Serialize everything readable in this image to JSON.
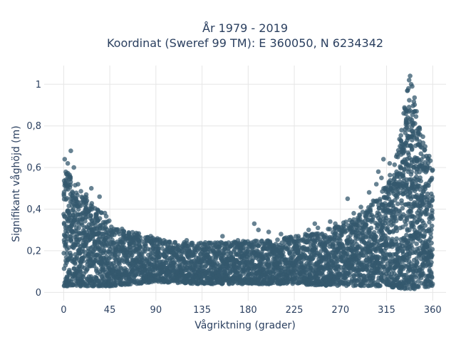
{
  "chart_data": {
    "type": "scatter",
    "title_line1": "År 1979 - 2019",
    "title_line2": "Koordinat (Sweref 99 TM): E 360050, N 6234342",
    "xlabel": "Vågriktning (grader)",
    "ylabel": "Signifikant våghöjd (m)",
    "xlim": [
      -19,
      373
    ],
    "ylim": [
      -0.04,
      1.09
    ],
    "x_ticks": [
      0,
      45,
      90,
      135,
      180,
      225,
      270,
      315,
      360
    ],
    "x_tick_labels": [
      "0",
      "45",
      "90",
      "135",
      "180",
      "225",
      "270",
      "315",
      "360"
    ],
    "y_ticks": [
      0,
      0.2,
      0.4,
      0.6,
      0.8,
      1
    ],
    "y_tick_labels": [
      "0",
      "0,2",
      "0,4",
      "0,6",
      "0,8",
      "1"
    ],
    "grid": true,
    "marker_color": "#34586e",
    "marker_opacity": 0.75,
    "series": [
      {
        "upper_envelope": [
          [
            0,
            0.6
          ],
          [
            5,
            0.57
          ],
          [
            10,
            0.55
          ],
          [
            15,
            0.5
          ],
          [
            20,
            0.47
          ],
          [
            25,
            0.45
          ],
          [
            30,
            0.42
          ],
          [
            40,
            0.38
          ],
          [
            45,
            0.36
          ],
          [
            50,
            0.32
          ],
          [
            60,
            0.3
          ],
          [
            70,
            0.29
          ],
          [
            80,
            0.27
          ],
          [
            90,
            0.26
          ],
          [
            100,
            0.25
          ],
          [
            120,
            0.24
          ],
          [
            135,
            0.24
          ],
          [
            150,
            0.24
          ],
          [
            180,
            0.25
          ],
          [
            200,
            0.25
          ],
          [
            225,
            0.27
          ],
          [
            245,
            0.29
          ],
          [
            260,
            0.31
          ],
          [
            270,
            0.33
          ],
          [
            285,
            0.36
          ],
          [
            300,
            0.42
          ],
          [
            315,
            0.52
          ],
          [
            325,
            0.68
          ],
          [
            330,
            0.82
          ],
          [
            335,
            0.96
          ],
          [
            338,
            1.04
          ],
          [
            342,
            0.96
          ],
          [
            347,
            0.8
          ],
          [
            352,
            0.72
          ],
          [
            356,
            0.66
          ],
          [
            360,
            0.62
          ]
        ],
        "lower_envelope": [
          [
            0,
            0.03
          ],
          [
            45,
            0.03
          ],
          [
            90,
            0.05
          ],
          [
            135,
            0.04
          ],
          [
            180,
            0.04
          ],
          [
            225,
            0.04
          ],
          [
            270,
            0.03
          ],
          [
            315,
            0.03
          ],
          [
            340,
            0.01
          ],
          [
            360,
            0.03
          ]
        ],
        "outliers": [
          [
            7,
            0.68
          ],
          [
            1,
            0.64
          ],
          [
            4,
            0.62
          ],
          [
            10,
            0.6
          ],
          [
            3,
            0.57
          ],
          [
            331,
            0.56
          ],
          [
            336,
            0.58
          ],
          [
            328,
            0.52
          ],
          [
            323,
            0.5
          ],
          [
            325,
            0.57
          ],
          [
            312,
            0.64
          ],
          [
            307,
            0.58
          ],
          [
            318,
            0.62
          ],
          [
            310,
            0.55
          ],
          [
            277,
            0.45
          ],
          [
            283,
            0.38
          ],
          [
            302,
            0.44
          ],
          [
            296,
            0.39
          ],
          [
            265,
            0.33
          ],
          [
            260,
            0.34
          ],
          [
            248,
            0.31
          ],
          [
            186,
            0.33
          ],
          [
            190,
            0.3
          ],
          [
            200,
            0.29
          ],
          [
            155,
            0.27
          ],
          [
            170,
            0.25
          ],
          [
            85,
            0.27
          ],
          [
            120,
            0.25
          ],
          [
            72,
            0.28
          ],
          [
            35,
            0.46
          ],
          [
            22,
            0.47
          ],
          [
            27,
            0.5
          ],
          [
            14,
            0.52
          ],
          [
            245,
            0.33
          ],
          [
            239,
            0.3
          ],
          [
            212,
            0.28
          ],
          [
            290,
            0.41
          ],
          [
            298,
            0.48
          ],
          [
            305,
            0.52
          ],
          [
            340,
            0.99
          ],
          [
            338,
            1.04
          ],
          [
            337,
            1.02
          ],
          [
            339,
            1.0
          ]
        ]
      }
    ]
  }
}
